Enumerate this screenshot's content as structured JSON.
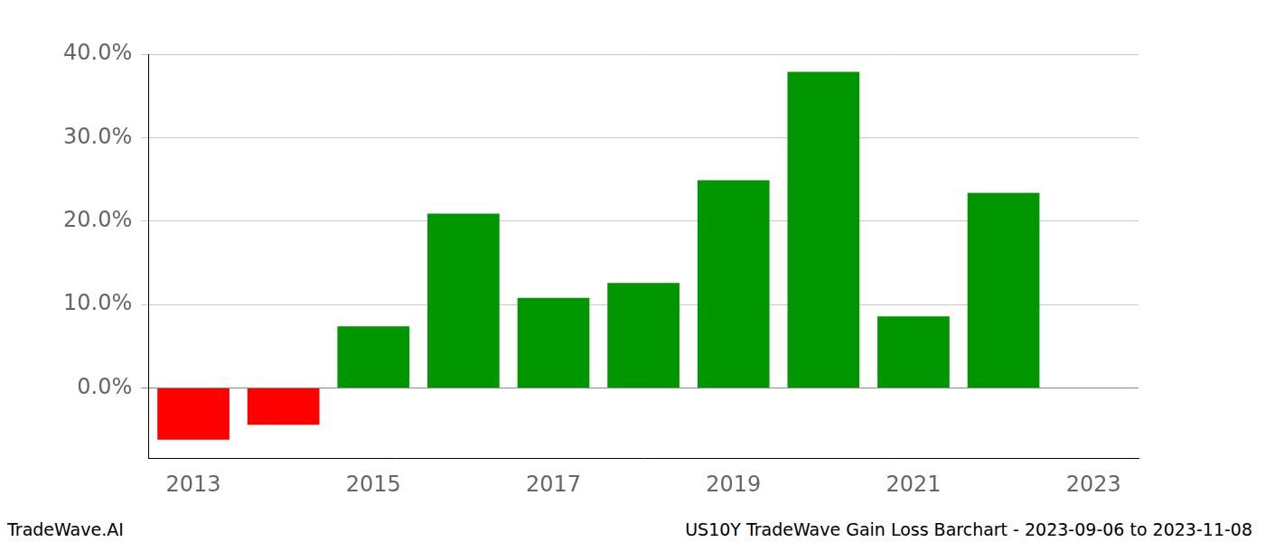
{
  "chart_data": {
    "type": "bar",
    "categories": [
      "2013",
      null,
      "2015",
      null,
      "2017",
      null,
      "2019",
      null,
      "2021",
      null,
      "2023"
    ],
    "values": [
      -6.2,
      -4.4,
      7.4,
      20.9,
      10.8,
      12.6,
      24.9,
      37.9,
      8.6,
      23.4,
      null
    ],
    "colors": [
      "#ff0000",
      "#ff0000",
      "#009600",
      "#009600",
      "#009600",
      "#009600",
      "#009600",
      "#009600",
      "#009600",
      "#009600",
      "#009600"
    ],
    "ylim": [
      -8.4,
      40.0
    ],
    "yticks": [
      {
        "value": 0,
        "label": "0.0%"
      },
      {
        "value": 10,
        "label": "10.0%"
      },
      {
        "value": 20,
        "label": "20.0%"
      },
      {
        "value": 30,
        "label": "30.0%"
      },
      {
        "value": 40,
        "label": "40.0%"
      }
    ],
    "grid": "y",
    "annotations": [
      "TradeWave.AI",
      "US10Y TradeWave Gain Loss Barchart - 2023-09-06 to 2023-11-08"
    ]
  }
}
